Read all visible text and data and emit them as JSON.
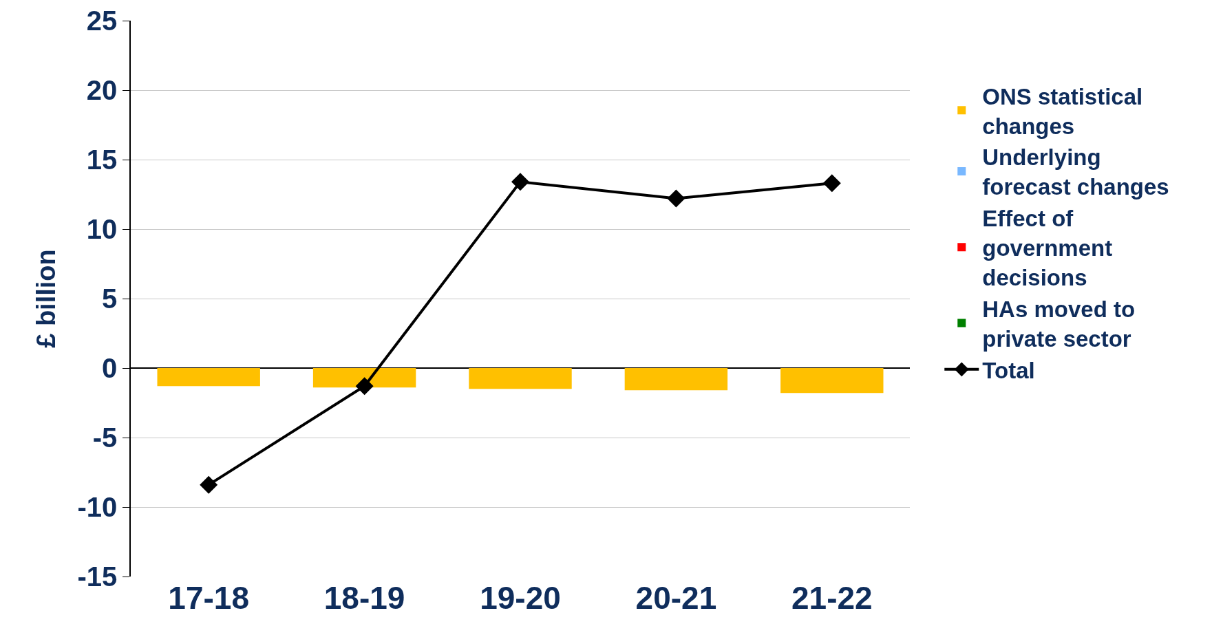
{
  "chart_data": {
    "type": "bar",
    "stacked": true,
    "ylabel": "£ billion",
    "categories": [
      "17-18",
      "18-19",
      "19-20",
      "20-21",
      "21-22"
    ],
    "series": [
      {
        "name": "ONS statistical changes",
        "color": "#ffc000",
        "values": [
          -1.3,
          -1.4,
          -1.5,
          -1.6,
          -1.8
        ]
      },
      {
        "name": "Underlying forecast changes",
        "color": "#79b8ff",
        "values": [
          0,
          0,
          0,
          0,
          0
        ]
      },
      {
        "name": "Effect of government decisions",
        "color": "#ff0000",
        "values": [
          0,
          0,
          0,
          0,
          0
        ]
      },
      {
        "name": "HAs moved to private sector",
        "color": "#008000",
        "values": [
          0,
          0,
          0,
          0,
          0
        ]
      },
      {
        "name": "Total",
        "type": "line",
        "color": "#000000",
        "marker": "diamond",
        "line_style": "solid",
        "values": [
          -8.4,
          -1.3,
          13.4,
          12.2,
          13.3
        ]
      }
    ],
    "ylim": [
      -15,
      25
    ],
    "yticks": [
      -15,
      -10,
      -5,
      0,
      5,
      10,
      15,
      20,
      25
    ],
    "grid": "y",
    "legend": "right"
  }
}
